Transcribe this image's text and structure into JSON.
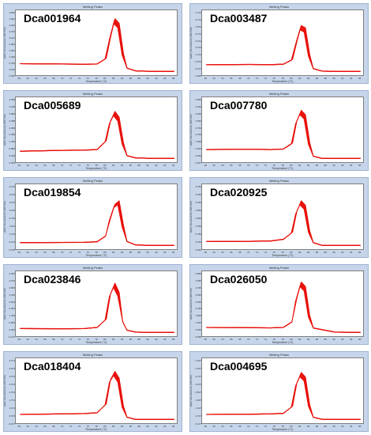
{
  "figure": {
    "panel_title": "Melting Peaks",
    "ylabel": "-d(dF) Fluorescence (465-510)",
    "xlabel": "Temperature (°C)",
    "xticks": [
      "60",
      "62",
      "64",
      "66",
      "68",
      "70",
      "72",
      "74",
      "76",
      "78",
      "80",
      "82",
      "84",
      "86",
      "88",
      "90",
      "92",
      "94",
      "96"
    ],
    "line_color": "#e8120c"
  },
  "chart_data": [
    {
      "type": "line",
      "gene": "Dca001964",
      "x": [
        60,
        70,
        75,
        78,
        80,
        81,
        82,
        83,
        84,
        85,
        87,
        90,
        96
      ],
      "y": [
        0.75,
        0.72,
        0.7,
        0.72,
        1.2,
        3.0,
        4.6,
        4.2,
        1.6,
        0.35,
        0.1,
        0.06,
        0.05
      ],
      "yticks": [
        "4.962",
        "4.662",
        "4.362",
        "3.762",
        "3.162",
        "2.562",
        "1.962",
        "1.362",
        "0.762",
        "0.162",
        "0.066"
      ]
    },
    {
      "type": "line",
      "gene": "Dca003487",
      "x": [
        60,
        70,
        75,
        78,
        80,
        81,
        82,
        83,
        84,
        85,
        87,
        90,
        96
      ],
      "y": [
        0.65,
        0.68,
        0.66,
        0.7,
        1.1,
        2.6,
        4.0,
        3.8,
        1.5,
        0.3,
        0.08,
        0.05,
        0.05
      ],
      "yticks": [
        "4.472",
        "4.172",
        "3.872",
        "3.272",
        "2.672",
        "2.072",
        "1.472",
        "0.872",
        "0.272",
        "0.006"
      ]
    },
    {
      "type": "line",
      "gene": "Dca005689",
      "x": [
        60,
        70,
        75,
        78,
        80,
        81,
        82,
        83,
        84,
        85,
        87,
        90,
        96
      ],
      "y": [
        0.7,
        0.78,
        0.8,
        0.85,
        1.6,
        3.3,
        4.1,
        3.6,
        1.4,
        0.3,
        0.1,
        0.06,
        0.05
      ],
      "yticks": [
        "4.489",
        "4.189",
        "3.889",
        "3.289",
        "2.689",
        "2.089",
        "1.489",
        "0.889",
        "0.289",
        "0.009"
      ]
    },
    {
      "type": "line",
      "gene": "Dca007780",
      "x": [
        60,
        70,
        75,
        78,
        80,
        81,
        82,
        83,
        84,
        85,
        87,
        90,
        96
      ],
      "y": [
        0.85,
        0.88,
        0.85,
        0.9,
        1.4,
        3.3,
        4.2,
        3.8,
        1.4,
        0.25,
        0.05,
        0.05,
        0.05
      ],
      "yticks": [
        "4.566",
        "4.266",
        "3.966",
        "3.366",
        "2.766",
        "2.166",
        "1.566",
        "0.966",
        "0.366",
        "0.007"
      ]
    },
    {
      "type": "line",
      "gene": "Dca019854",
      "x": [
        60,
        70,
        75,
        78,
        80,
        81,
        82,
        83,
        84,
        85,
        87,
        90,
        96
      ],
      "y": [
        0.3,
        0.32,
        0.33,
        0.38,
        0.9,
        2.4,
        3.6,
        3.9,
        1.8,
        0.4,
        0.1,
        0.05,
        0.05
      ],
      "yticks": [
        "4.279",
        "3.979",
        "3.679",
        "3.079",
        "2.479",
        "1.879",
        "1.279",
        "0.679",
        "0.079"
      ]
    },
    {
      "type": "line",
      "gene": "Dca020925",
      "x": [
        60,
        70,
        75,
        78,
        80,
        81,
        82,
        83,
        84,
        85,
        87,
        90,
        96
      ],
      "y": [
        0.4,
        0.42,
        0.45,
        0.6,
        1.2,
        3.0,
        3.9,
        3.5,
        1.3,
        0.3,
        0.06,
        0.05,
        0.05
      ],
      "yticks": [
        "3.750",
        "3.450",
        "3.150",
        "2.550",
        "1.950",
        "1.350",
        "0.750",
        "0.150",
        "0.092"
      ]
    },
    {
      "type": "line",
      "gene": "Dca023846",
      "x": [
        60,
        70,
        75,
        78,
        80,
        81,
        82,
        83,
        84,
        85,
        87,
        90,
        96
      ],
      "y": [
        0.4,
        0.38,
        0.4,
        0.5,
        1.2,
        3.4,
        4.3,
        3.5,
        1.0,
        0.25,
        0.08,
        0.05,
        0.05
      ],
      "yticks": [
        "4.453",
        "4.153",
        "3.853",
        "3.253",
        "2.653",
        "2.053",
        "1.453",
        "0.853",
        "0.253",
        "-0.147"
      ]
    },
    {
      "type": "line",
      "gene": "Dca026050",
      "x": [
        60,
        70,
        75,
        78,
        80,
        81,
        82,
        83,
        84,
        85,
        87,
        90,
        96
      ],
      "y": [
        0.5,
        0.48,
        0.46,
        0.5,
        1.0,
        3.0,
        4.4,
        4.0,
        1.5,
        0.45,
        0.3,
        0.08,
        0.05
      ],
      "yticks": [
        "4.865",
        "4.565",
        "4.265",
        "3.665",
        "3.065",
        "2.465",
        "1.865",
        "1.265",
        "0.665",
        "0.065"
      ]
    },
    {
      "type": "line",
      "gene": "Dca018404",
      "x": [
        60,
        70,
        75,
        78,
        80,
        81,
        82,
        83,
        84,
        85,
        87,
        90,
        96
      ],
      "y": [
        0.5,
        0.55,
        0.58,
        0.65,
        1.4,
        3.5,
        4.2,
        3.6,
        1.2,
        0.25,
        0.05,
        0.05,
        0.05
      ],
      "yticks": [
        "4.173",
        "3.873",
        "3.573",
        "2.973",
        "2.373",
        "1.773",
        "1.173",
        "0.573",
        "-0.027"
      ]
    },
    {
      "type": "line",
      "gene": "Dca004695",
      "x": [
        60,
        70,
        75,
        78,
        80,
        81,
        82,
        83,
        84,
        85,
        87,
        90,
        96
      ],
      "y": [
        0.5,
        0.52,
        0.55,
        0.6,
        1.2,
        3.2,
        4.1,
        3.7,
        1.3,
        0.25,
        0.06,
        0.05,
        0.05
      ],
      "yticks": [
        "4.307",
        "4.007",
        "3.707",
        "3.107",
        "2.507",
        "1.907",
        "1.307",
        "0.707",
        "0.107"
      ]
    }
  ]
}
